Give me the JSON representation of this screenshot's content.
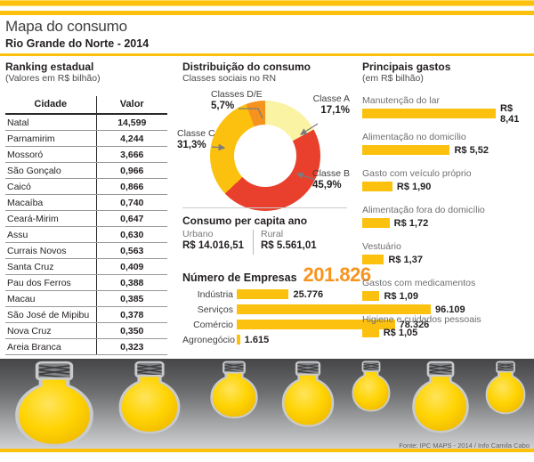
{
  "header": {
    "title": "Mapa do consumo",
    "subtitle": "Rio Grande do Norte - 2014"
  },
  "footer": {
    "source": "Fonte: IPC MAPS - 2014 / Info Camila Cabo"
  },
  "colors": {
    "accent_yellow": "#fbc10e",
    "accent_orange": "#f7941e",
    "accent_red": "#e8402c",
    "pale_yellow": "#faf3a3"
  },
  "chart_data": [
    {
      "type": "pie",
      "donut": true,
      "title": "Distribuição do consumo",
      "subtitle": "Classes sociais no RN",
      "labels": [
        "Classe A",
        "Classe B",
        "Classe C",
        "Classes D/E"
      ],
      "values": [
        17.1,
        45.9,
        31.3,
        5.7
      ],
      "value_labels": [
        "17,1%",
        "45,9%",
        "31,3%",
        "5,7%"
      ],
      "colors": [
        "#faf3a3",
        "#e8402c",
        "#fbc10e",
        "#f6921e"
      ]
    },
    {
      "type": "bar",
      "orientation": "horizontal",
      "title": "Número de Empresas",
      "total_label": "201.826",
      "categories": [
        "Indústria",
        "Serviços",
        "Comércio",
        "Agronegócio"
      ],
      "values": [
        25776,
        96109,
        78326,
        1615
      ],
      "value_labels": [
        "25.776",
        "96.109",
        "78.326",
        "1.615"
      ],
      "bar_color": "#fbc10e"
    },
    {
      "type": "bar",
      "orientation": "horizontal",
      "title": "Principais gastos",
      "subtitle": "(em R$ bilhão)",
      "categories": [
        "Manutenção do lar",
        "Alimentação no domicílio",
        "Gasto com veículo próprio",
        "Alimentação fora do domicílio",
        "Vestuário",
        "Gastos com medicamentos",
        "Higiene e cuidados pessoais"
      ],
      "values": [
        8.41,
        5.52,
        1.9,
        1.72,
        1.37,
        1.09,
        1.05
      ],
      "value_labels": [
        "R$ 8,41",
        "R$ 5,52",
        "R$ 1,90",
        "R$ 1,72",
        "R$ 1,37",
        "R$ 1,09",
        "R$ 1,05"
      ],
      "bar_color": "#fbc10e"
    },
    {
      "type": "table",
      "title": "Ranking estadual",
      "subtitle": "(Valores em R$ bilhão)",
      "columns": [
        "Cidade",
        "Valor"
      ],
      "rows": [
        [
          "Natal",
          "14,599"
        ],
        [
          "Parnamirim",
          "4,244"
        ],
        [
          "Mossoró",
          "3,666"
        ],
        [
          "São Gonçalo",
          "0,966"
        ],
        [
          "Caicó",
          "0,866"
        ],
        [
          "Macaíba",
          "0,740"
        ],
        [
          "Ceará-Mirim",
          "0,647"
        ],
        [
          "Assu",
          "0,630"
        ],
        [
          "Currais Novos",
          "0,563"
        ],
        [
          "Santa Cruz",
          "0,409"
        ],
        [
          "Pau dos Ferros",
          "0,388"
        ],
        [
          "Macau",
          "0,385"
        ],
        [
          "São José de Mipibu",
          "0,378"
        ],
        [
          "Nova Cruz",
          "0,350"
        ],
        [
          "Areia Branca",
          "0,323"
        ]
      ]
    },
    {
      "type": "table",
      "title": "Consumo per capita ano",
      "columns": [
        "Urbano",
        "Rural"
      ],
      "rows": [
        [
          "R$ 14.016,51",
          "R$ 5.561,01"
        ]
      ]
    }
  ]
}
